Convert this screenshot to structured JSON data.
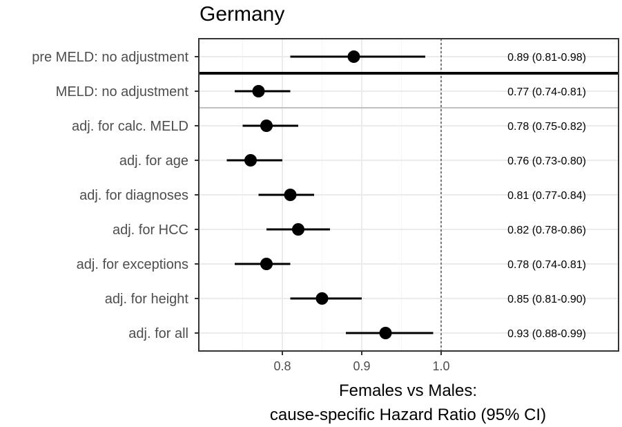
{
  "chart_data": {
    "type": "scatter",
    "title": "Germany",
    "xlabel_lines": [
      "Females vs Males:",
      "cause-specific Hazard Ratio (95% CI)"
    ],
    "x_ticks": [
      "0.8",
      "0.9",
      "1.0"
    ],
    "x_tick_values": [
      0.8,
      0.9,
      1.0
    ],
    "xlim": [
      0.7,
      1.2
    ],
    "reference_line": 1.0,
    "rows": [
      {
        "label": "pre MELD: no adjustment",
        "hr": 0.89,
        "lo": 0.81,
        "hi": 0.98,
        "text": "0.89 (0.81-0.98)"
      },
      {
        "label": "MELD: no adjustment",
        "hr": 0.77,
        "lo": 0.74,
        "hi": 0.81,
        "text": "0.77 (0.74-0.81)"
      },
      {
        "label": "adj. for calc. MELD",
        "hr": 0.78,
        "lo": 0.75,
        "hi": 0.82,
        "text": "0.78 (0.75-0.82)"
      },
      {
        "label": "adj. for age",
        "hr": 0.76,
        "lo": 0.73,
        "hi": 0.8,
        "text": "0.76 (0.73-0.80)"
      },
      {
        "label": "adj. for diagnoses",
        "hr": 0.81,
        "lo": 0.77,
        "hi": 0.84,
        "text": "0.81 (0.77-0.84)"
      },
      {
        "label": "adj. for HCC",
        "hr": 0.82,
        "lo": 0.78,
        "hi": 0.86,
        "text": "0.82 (0.78-0.86)"
      },
      {
        "label": "adj. for exceptions",
        "hr": 0.78,
        "lo": 0.74,
        "hi": 0.81,
        "text": "0.78 (0.74-0.81)"
      },
      {
        "label": "adj. for height",
        "hr": 0.85,
        "lo": 0.81,
        "hi": 0.9,
        "text": "0.85 (0.81-0.90)"
      },
      {
        "label": "adj. for all",
        "hr": 0.93,
        "lo": 0.88,
        "hi": 0.99,
        "text": "0.93 (0.88-0.99)"
      }
    ],
    "grid": true,
    "colors": {
      "point": "#000000",
      "grid": "#ebebeb",
      "panel_border": "#333333",
      "separator_light": "#bfbfbf"
    }
  }
}
